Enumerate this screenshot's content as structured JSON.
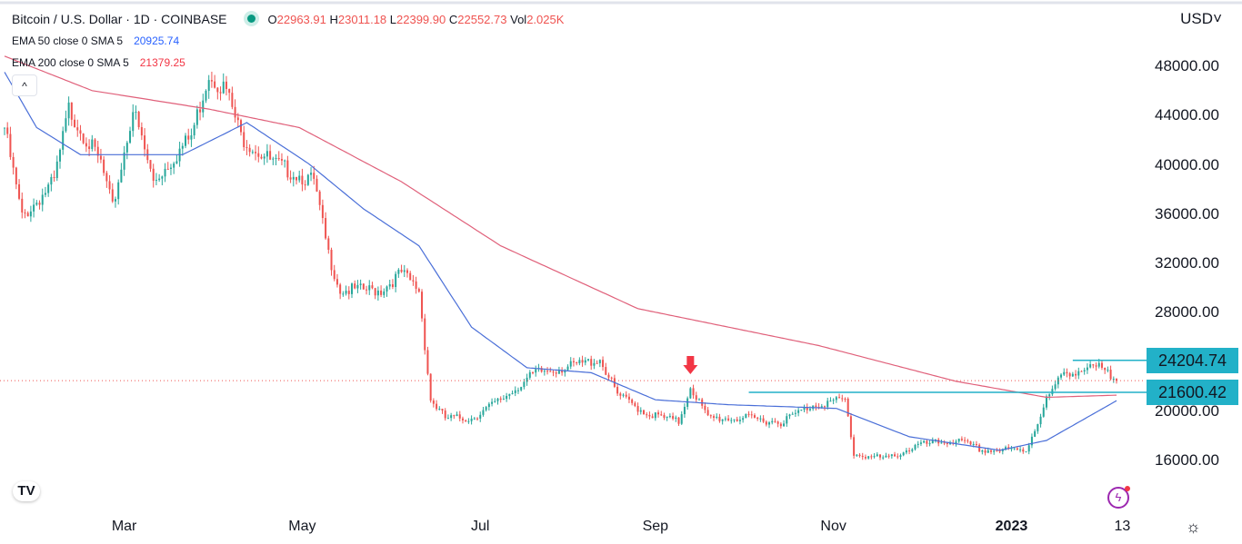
{
  "header": {
    "symbol_title": "Bitcoin / U.S. Dollar · 1D · COINBASE",
    "open_label": "O",
    "open": "22963.91",
    "high_label": "H",
    "high": "23011.18",
    "low_label": "L",
    "low": "22399.90",
    "close_label": "C",
    "close": "22552.73",
    "vol_label": "Vol",
    "vol": "2.025K",
    "ema50_label": "EMA 50 close 0 SMA 5",
    "ema50_value": "20925.74",
    "ema200_label": "EMA 200 close 0 SMA 5",
    "ema200_value": "21379.25",
    "currency": "USD"
  },
  "colors": {
    "up": "#26a69a",
    "down": "#ef5350",
    "ema50": "#4a6fd8",
    "ema200": "#e0607a",
    "level": "#22b1c8"
  },
  "chart_data": {
    "type": "candlestick",
    "title": "Bitcoin / U.S. Dollar · 1D · COINBASE",
    "ylim": [
      16000,
      48000
    ],
    "y_ticks": [
      "48000.00",
      "44000.00",
      "40000.00",
      "36000.00",
      "32000.00",
      "28000.00",
      "24000.00",
      "20000.00",
      "16000.00"
    ],
    "x_ticks": [
      {
        "label": "Mar",
        "day": 41
      },
      {
        "label": "May",
        "day": 102
      },
      {
        "label": "Jul",
        "day": 163
      },
      {
        "label": "Sep",
        "day": 223
      },
      {
        "label": "Nov",
        "day": 284
      },
      {
        "label": "2023",
        "day": 345,
        "bold": true
      },
      {
        "label": "13",
        "day": 383
      }
    ],
    "price_keypoints": [
      [
        0,
        43100
      ],
      [
        6,
        35800
      ],
      [
        17,
        38700
      ],
      [
        22,
        44600
      ],
      [
        33,
        40200
      ],
      [
        37,
        36500
      ],
      [
        44,
        44600
      ],
      [
        51,
        38700
      ],
      [
        64,
        42400
      ],
      [
        70,
        47500
      ],
      [
        76,
        46100
      ],
      [
        81,
        42400
      ],
      [
        92,
        40200
      ],
      [
        106,
        38700
      ],
      [
        111,
        32800
      ],
      [
        115,
        29900
      ],
      [
        129,
        29900
      ],
      [
        136,
        31300
      ],
      [
        142,
        29900
      ],
      [
        146,
        21000
      ],
      [
        151,
        19500
      ],
      [
        160,
        19500
      ],
      [
        170,
        21000
      ],
      [
        182,
        23200
      ],
      [
        192,
        23600
      ],
      [
        204,
        24300
      ],
      [
        210,
        21400
      ],
      [
        220,
        19900
      ],
      [
        231,
        19200
      ],
      [
        235,
        22100
      ],
      [
        241,
        19500
      ],
      [
        254,
        19500
      ],
      [
        266,
        19200
      ],
      [
        277,
        20600
      ],
      [
        288,
        21000
      ],
      [
        291,
        16600
      ],
      [
        302,
        16200
      ],
      [
        313,
        17300
      ],
      [
        326,
        17700
      ],
      [
        335,
        16900
      ],
      [
        350,
        16900
      ],
      [
        357,
        21000
      ],
      [
        363,
        23200
      ],
      [
        375,
        23600
      ],
      [
        381,
        22552.73
      ]
    ],
    "ema50_keypoints": [
      [
        0,
        47600
      ],
      [
        11,
        43100
      ],
      [
        26,
        40900
      ],
      [
        61,
        40900
      ],
      [
        83,
        43500
      ],
      [
        104,
        40200
      ],
      [
        123,
        36500
      ],
      [
        142,
        33500
      ],
      [
        160,
        26900
      ],
      [
        179,
        23600
      ],
      [
        201,
        23200
      ],
      [
        223,
        21000
      ],
      [
        248,
        20600
      ],
      [
        285,
        20300
      ],
      [
        310,
        18000
      ],
      [
        341,
        16900
      ],
      [
        357,
        17700
      ],
      [
        381,
        20925.74
      ]
    ],
    "ema200_keypoints": [
      [
        0,
        48900
      ],
      [
        30,
        46100
      ],
      [
        70,
        44600
      ],
      [
        101,
        43100
      ],
      [
        136,
        38700
      ],
      [
        170,
        33500
      ],
      [
        217,
        28400
      ],
      [
        279,
        25400
      ],
      [
        326,
        22500
      ],
      [
        357,
        21200
      ],
      [
        381,
        21379.25
      ]
    ],
    "levels": [
      {
        "label": "24204.74",
        "value": 24204.74,
        "from_day": 366
      },
      {
        "label": "21600.42",
        "value": 21600.42,
        "from_day": 255
      }
    ],
    "last_price": 22552.73,
    "annotations": [
      {
        "type": "down-arrow",
        "day": 235,
        "color": "#f23645"
      }
    ]
  },
  "ui": {
    "collapse": "^",
    "tv_logo": "TV",
    "gear": "☼",
    "bolt": "ϟ"
  }
}
